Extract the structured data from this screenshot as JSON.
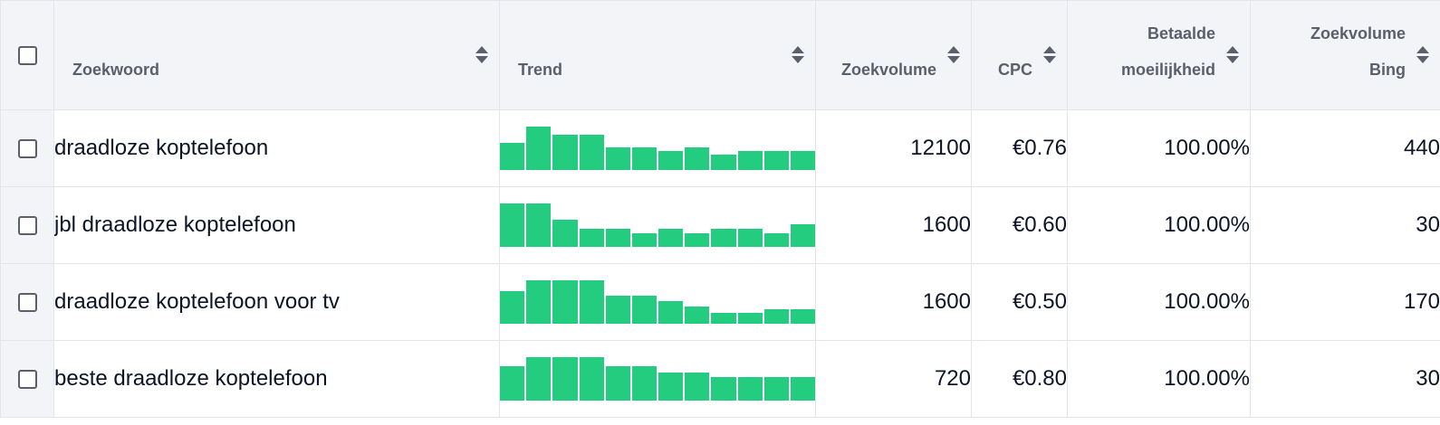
{
  "table": {
    "headers": {
      "keyword": "Zoekwoord",
      "trend": "Trend",
      "volume": "Zoekvolume",
      "cpc": "CPC",
      "difficulty_line1": "Betaalde",
      "difficulty_line2": "moeilijkheid",
      "bing_line1": "Zoekvolume",
      "bing_line2": "Bing"
    },
    "trend_color": "#23cc7e",
    "rows": [
      {
        "keyword": "draadloze koptelefoon",
        "trend": [
          0.62,
          1.0,
          0.82,
          0.82,
          0.52,
          0.52,
          0.44,
          0.52,
          0.35,
          0.44,
          0.44,
          0.44
        ],
        "volume": "12100",
        "cpc": "€0.76",
        "difficulty": "100.00%",
        "bing": "440"
      },
      {
        "keyword": "jbl draadloze koptelefoon",
        "trend": [
          1.0,
          1.0,
          0.62,
          0.42,
          0.42,
          0.32,
          0.42,
          0.32,
          0.42,
          0.42,
          0.32,
          0.52
        ],
        "volume": "1600",
        "cpc": "€0.60",
        "difficulty": "100.00%",
        "bing": "30"
      },
      {
        "keyword": "draadloze koptelefoon voor tv",
        "trend": [
          0.75,
          1.0,
          1.0,
          1.0,
          0.65,
          0.65,
          0.52,
          0.4,
          0.26,
          0.26,
          0.33,
          0.33
        ],
        "volume": "1600",
        "cpc": "€0.50",
        "difficulty": "100.00%",
        "bing": "170"
      },
      {
        "keyword": "beste draadloze koptelefoon",
        "trend": [
          0.8,
          1.0,
          1.0,
          1.0,
          0.8,
          0.8,
          0.65,
          0.65,
          0.55,
          0.55,
          0.55,
          0.55
        ],
        "volume": "720",
        "cpc": "€0.80",
        "difficulty": "100.00%",
        "bing": "30"
      }
    ]
  }
}
